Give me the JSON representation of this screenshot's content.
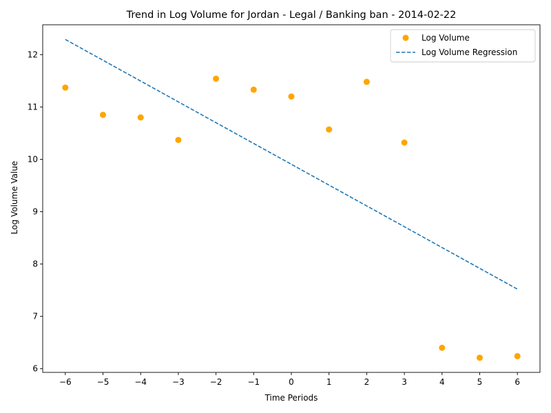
{
  "chart_data": {
    "type": "scatter",
    "title": "Trend in Log Volume for Jordan - Legal /  Banking ban - 2014-02-22",
    "xlabel": "Time Periods",
    "ylabel": "Log Volume Value",
    "xlim": [
      -6.6,
      6.6
    ],
    "ylim": [
      5.93,
      12.57
    ],
    "xticks": [
      -6,
      -5,
      -4,
      -3,
      -2,
      -1,
      0,
      1,
      2,
      3,
      4,
      5,
      6
    ],
    "xtick_labels": [
      "−6",
      "−5",
      "−4",
      "−3",
      "−2",
      "−1",
      "0",
      "1",
      "2",
      "3",
      "4",
      "5",
      "6"
    ],
    "yticks": [
      6,
      7,
      8,
      9,
      10,
      11,
      12
    ],
    "ytick_labels": [
      "6",
      "7",
      "8",
      "9",
      "10",
      "11",
      "12"
    ],
    "grid": false,
    "legend_position": "top-right",
    "series": [
      {
        "name": "Log Volume",
        "kind": "scatter",
        "color": "#ffa500",
        "x": [
          -6,
          -5,
          -4,
          -3,
          -2,
          -1,
          0,
          1,
          2,
          3,
          4,
          5,
          6
        ],
        "y": [
          11.37,
          10.85,
          10.8,
          10.37,
          11.54,
          11.33,
          11.2,
          10.57,
          11.48,
          10.32,
          6.4,
          6.21,
          6.24
        ]
      },
      {
        "name": "Log Volume Regression",
        "kind": "line",
        "style": "dashed",
        "color": "#1f77b4",
        "x": [
          -6,
          6
        ],
        "y": [
          12.29,
          7.52
        ]
      }
    ]
  }
}
